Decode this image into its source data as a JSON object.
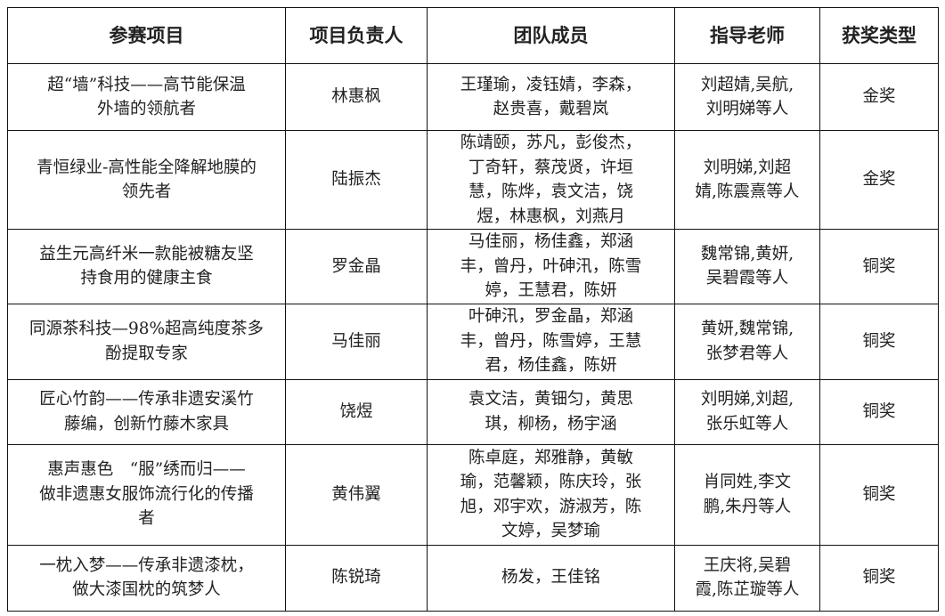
{
  "table": {
    "headers": [
      "参赛项目",
      "项目负责人",
      "团队成员",
      "指导老师",
      "获奖类型"
    ],
    "rows": [
      {
        "project": [
          "超“墙”科技——高节能保温",
          "外墙的领航者"
        ],
        "leader": [
          "林惠枫"
        ],
        "members": [
          "王瑾瑜，凌钰婧，李森，",
          "赵贵喜，戴碧岚"
        ],
        "advisors": [
          "刘超婧,吴航,",
          "刘明娣等人"
        ],
        "award": [
          "金奖"
        ]
      },
      {
        "project": [
          "青恒绿业-高性能全降解地膜的",
          "领先者"
        ],
        "leader": [
          "陆振杰"
        ],
        "members": [
          "陈靖颐，苏凡，彭俊杰，",
          "丁奇轩，蔡茂贤，许垣",
          "慧，陈烨，袁文洁，饶",
          "煜，林惠枫，刘燕月"
        ],
        "advisors": [
          "刘明娣,刘超",
          "婧,陈震熹等人"
        ],
        "award": [
          "金奖"
        ]
      },
      {
        "project": [
          "益生元高纤米一款能被糖友坚",
          "持食用的健康主食"
        ],
        "leader": [
          "罗金晶"
        ],
        "members": [
          "马佳丽，杨佳鑫，郑涵",
          "丰，曾丹，叶砷汛，陈雪",
          "婷，王慧君，陈妍"
        ],
        "advisors": [
          "魏常锦,黄妍,",
          "吴碧霞等人"
        ],
        "award": [
          "铜奖"
        ]
      },
      {
        "project": [
          "同源茶科技—98%超高纯度茶多",
          "酚提取专家"
        ],
        "leader": [
          "马佳丽"
        ],
        "members": [
          "叶砷汛，罗金晶，郑涵",
          "丰，曾丹，陈雪婷，王慧",
          "君，杨佳鑫，陈妍"
        ],
        "advisors": [
          "黄妍,魏常锦,",
          "张梦君等人"
        ],
        "award": [
          "铜奖"
        ]
      },
      {
        "project": [
          "匠心竹韵——传承非遗安溪竹",
          "藤编，创新竹藤木家具"
        ],
        "leader": [
          "饶煜"
        ],
        "members": [
          "袁文洁，黄钿匀，黄思",
          "琪，柳杨，杨宇涵"
        ],
        "advisors": [
          "刘明娣,刘超,",
          "张乐虹等人"
        ],
        "award": [
          "铜奖"
        ]
      },
      {
        "project": [
          "惠声惠色　“服”绣而归——",
          "做非遗惠女服饰流行化的传播",
          "者"
        ],
        "leader": [
          "黄伟翼"
        ],
        "members": [
          "陈卓庭，郑雅静，黄敏",
          "瑜，范馨颖，陈庆玲，张",
          "旭，邓宇欢，游淑芳，陈",
          "文婷，吴梦瑜"
        ],
        "advisors": [
          "肖同姓,李文",
          "鹏,朱丹等人"
        ],
        "award": [
          "铜奖"
        ]
      },
      {
        "project": [
          "一枕入梦——传承非遗漆枕，",
          "做大漆国枕的筑梦人"
        ],
        "leader": [
          "陈锐琦"
        ],
        "members": [
          "杨发，王佳铭"
        ],
        "advisors": [
          "王庆将,吴碧",
          "霞,陈芷璇等人"
        ],
        "award": [
          "铜奖"
        ]
      }
    ]
  }
}
